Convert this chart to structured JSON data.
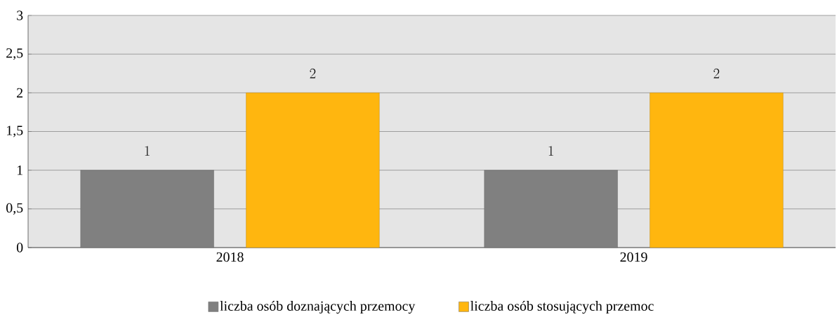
{
  "chart_data": {
    "type": "bar",
    "categories": [
      "2018",
      "2019"
    ],
    "series": [
      {
        "name": "liczba osób doznających przemocy",
        "color": "#808080",
        "values": [
          1,
          1
        ]
      },
      {
        "name": "liczba osób stosujących przemoc",
        "color": "#ffb60f",
        "values": [
          2,
          2
        ]
      }
    ],
    "ylim": [
      0,
      3
    ],
    "yticks": [
      0,
      {
        "value": 0.5,
        "label": "0,5"
      },
      1,
      {
        "value": 1.5,
        "label": "1,5"
      },
      2,
      {
        "value": 2.5,
        "label": "2,5"
      },
      3
    ],
    "grid": "y",
    "data_labels": true,
    "legend": "bottom"
  }
}
